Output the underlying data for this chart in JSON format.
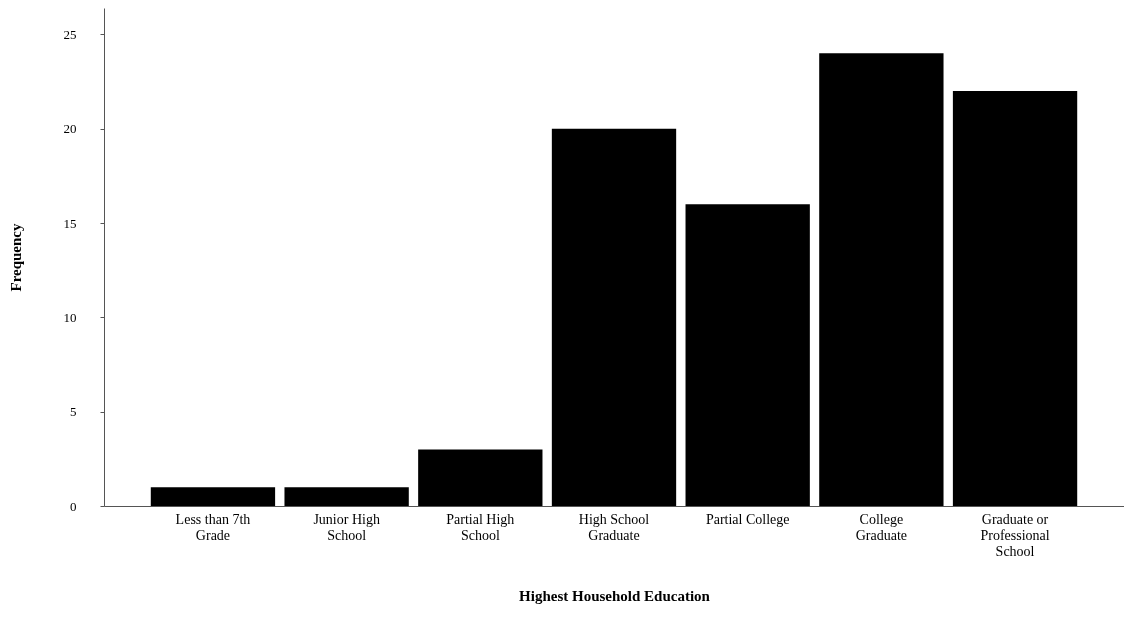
{
  "chart_data": {
    "type": "bar",
    "xlabel": "Highest Household Education",
    "ylabel": "Frequency",
    "categories": [
      "Less than 7th Grade",
      "Junior High School",
      "Partial High School",
      "High School Graduate",
      "Partial College",
      "College Graduate",
      "Graduate or Professional School"
    ],
    "values": [
      1,
      1,
      3,
      20,
      16,
      24,
      22
    ],
    "color": "#000000",
    "ylim": [
      0,
      26.4
    ],
    "yticks": [
      0,
      5,
      10,
      15,
      20,
      25
    ],
    "grid": false
  }
}
